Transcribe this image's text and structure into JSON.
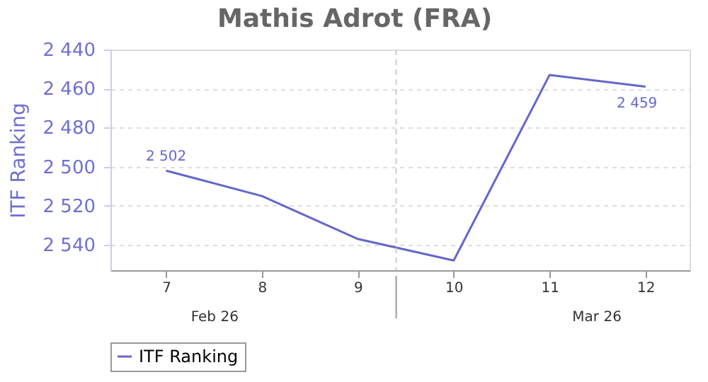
{
  "chart_data": {
    "type": "line",
    "title": "Mathis Adrot (FRA)",
    "ylabel": "ITF Ranking",
    "x": [
      7,
      8,
      9,
      10,
      11,
      12
    ],
    "series": [
      {
        "name": "ITF Ranking",
        "color": "#6666cc",
        "values": [
          2502,
          2515,
          2537,
          2548,
          2453,
          2459
        ],
        "value_labels": [
          "2 502",
          null,
          null,
          null,
          null,
          "2 459"
        ]
      }
    ],
    "xlim": [
      6.42,
      12.46
    ],
    "xticks": [
      7,
      8,
      9,
      10,
      11,
      12
    ],
    "ylim": [
      2553,
      2440
    ],
    "yticks": [
      {
        "value": 2440,
        "label": "2 440"
      },
      {
        "value": 2460,
        "label": "2 460"
      },
      {
        "value": 2480,
        "label": "2 480"
      },
      {
        "value": 2500,
        "label": "2 500"
      },
      {
        "value": 2520,
        "label": "2 520"
      },
      {
        "value": 2540,
        "label": "2 540"
      }
    ],
    "ref_lines": [
      {
        "axis": "x",
        "value": 9.4,
        "line_style": "dashed",
        "color": "#cccccc"
      }
    ],
    "annotations": [
      "Feb 26",
      "Mar 26"
    ],
    "grid": "y",
    "legend": "bottom",
    "marker": "none",
    "line_style": "solid"
  }
}
